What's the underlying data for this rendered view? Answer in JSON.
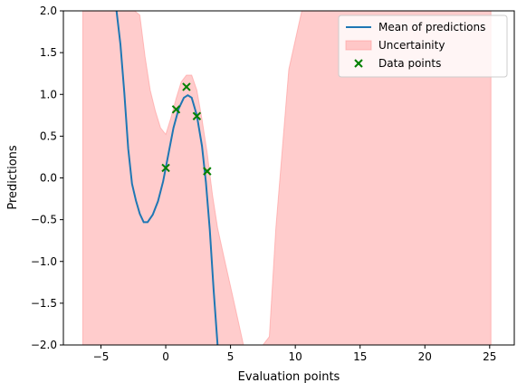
{
  "chart_data": {
    "type": "line",
    "title": "",
    "xlabel": "Evaluation points",
    "ylabel": "Predictions",
    "xlim": [
      -7.9,
      26.9
    ],
    "ylim": [
      -2.0,
      2.0
    ],
    "x_ticks": [
      -5,
      0,
      5,
      10,
      15,
      20,
      25
    ],
    "x_tick_labels": [
      "−5",
      "0",
      "5",
      "10",
      "15",
      "20",
      "25"
    ],
    "y_ticks": [
      -2.0,
      -1.5,
      -1.0,
      -0.5,
      0.0,
      0.5,
      1.0,
      1.5,
      2.0
    ],
    "y_tick_labels": [
      "−2.0",
      "−1.5",
      "−1.0",
      "−0.5",
      "0.0",
      "0.5",
      "1.0",
      "1.5",
      "2.0"
    ],
    "grid": false,
    "legend_position": "top-right",
    "series": [
      {
        "name": "Mean of predictions",
        "kind": "line",
        "color": "#1f77b4",
        "x": [
          -3.8,
          -3.5,
          -3.2,
          -2.9,
          -2.6,
          -2.3,
          -2.0,
          -1.7,
          -1.4,
          -1.0,
          -0.6,
          -0.2,
          0.2,
          0.6,
          1.0,
          1.4,
          1.7,
          2.0,
          2.4,
          2.8,
          3.1,
          3.4,
          3.7,
          4.0
        ],
        "y": [
          2.0,
          1.6,
          1.02,
          0.35,
          -0.07,
          -0.27,
          -0.43,
          -0.53,
          -0.53,
          -0.44,
          -0.28,
          -0.04,
          0.28,
          0.6,
          0.83,
          0.96,
          0.99,
          0.96,
          0.75,
          0.38,
          -0.05,
          -0.62,
          -1.35,
          -2.0
        ]
      },
      {
        "name": "Uncertainity",
        "kind": "band",
        "color": "#ff9999",
        "opacity": 0.5,
        "x": [
          -6.4,
          -5.5,
          -4.6,
          -4.0,
          -3.6,
          -3.2,
          -2.8,
          -2.4,
          -2.0,
          -1.6,
          -1.2,
          -0.8,
          -0.4,
          0.0,
          0.4,
          0.8,
          1.2,
          1.6,
          2.0,
          2.4,
          2.8,
          3.2,
          3.6,
          4.0,
          4.5,
          5.0,
          5.5,
          6.0,
          6.5,
          7.0,
          7.5,
          8.0,
          8.5,
          9.5,
          10.5,
          12.0,
          14.0,
          16.0,
          18.0,
          20.0,
          22.0,
          24.0,
          25.1
        ],
        "y_upper": [
          2.0,
          2.0,
          2.0,
          2.0,
          2.0,
          2.0,
          2.0,
          2.0,
          1.95,
          1.45,
          1.05,
          0.8,
          0.6,
          0.52,
          0.72,
          0.95,
          1.15,
          1.23,
          1.23,
          1.05,
          0.7,
          0.3,
          -0.2,
          -0.6,
          -0.95,
          -1.3,
          -1.65,
          -2.0,
          -2.0,
          -2.0,
          -2.0,
          -1.9,
          -0.6,
          1.3,
          2.0,
          2.0,
          2.0,
          2.0,
          2.0,
          2.0,
          2.0,
          2.0,
          2.0
        ],
        "y_lower": [
          -2.0,
          -2.0,
          -2.0,
          -2.0,
          -2.0,
          -2.0,
          -2.0,
          -2.0,
          -2.0,
          -2.0,
          -2.0,
          -2.0,
          -2.0,
          -2.0,
          -2.0,
          -2.0,
          -2.0,
          -2.0,
          -2.0,
          -2.0,
          -2.0,
          -2.0,
          -2.0,
          -2.0,
          -2.0,
          -2.0,
          -2.0,
          -2.0,
          -2.0,
          -2.0,
          -2.0,
          -2.0,
          -2.0,
          -2.0,
          -2.0,
          -2.0,
          -2.0,
          -2.0,
          -2.0,
          -2.0,
          -2.0,
          -2.0,
          -2.0
        ]
      },
      {
        "name": "Data points",
        "kind": "scatter",
        "marker": "x",
        "color": "#008000",
        "x": [
          0.0,
          0.8,
          1.6,
          2.4,
          3.2
        ],
        "y": [
          0.12,
          0.82,
          1.09,
          0.74,
          0.08
        ]
      }
    ]
  }
}
